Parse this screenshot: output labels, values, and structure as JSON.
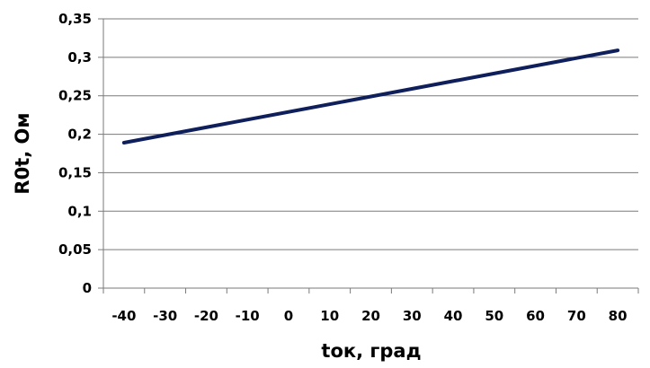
{
  "chart_data": {
    "type": "line",
    "xlabel": "tок, град",
    "ylabel": "R0t, Ом",
    "xlim": [
      -45,
      85
    ],
    "ylim": [
      0,
      0.35
    ],
    "grid": {
      "horizontal": true,
      "vertical": false
    },
    "x_ticks": [
      {
        "value": -40,
        "label": "-40"
      },
      {
        "value": -30,
        "label": "-30"
      },
      {
        "value": -20,
        "label": "-20"
      },
      {
        "value": -10,
        "label": "-10"
      },
      {
        "value": 0,
        "label": "0"
      },
      {
        "value": 10,
        "label": "10"
      },
      {
        "value": 20,
        "label": "20"
      },
      {
        "value": 30,
        "label": "30"
      },
      {
        "value": 40,
        "label": "40"
      },
      {
        "value": 50,
        "label": "50"
      },
      {
        "value": 60,
        "label": "60"
      },
      {
        "value": 70,
        "label": "70"
      },
      {
        "value": 80,
        "label": "80"
      }
    ],
    "y_ticks": [
      {
        "value": 0,
        "label": "0"
      },
      {
        "value": 0.05,
        "label": "0,05"
      },
      {
        "value": 0.1,
        "label": "0,1"
      },
      {
        "value": 0.15,
        "label": "0,15"
      },
      {
        "value": 0.2,
        "label": "0,2"
      },
      {
        "value": 0.25,
        "label": "0,25"
      },
      {
        "value": 0.3,
        "label": "0,3"
      },
      {
        "value": 0.35,
        "label": "0,35"
      }
    ],
    "series": [
      {
        "color": "#0f1f5c",
        "x": [
          -40,
          80
        ],
        "y": [
          0.189,
          0.309
        ]
      }
    ]
  }
}
